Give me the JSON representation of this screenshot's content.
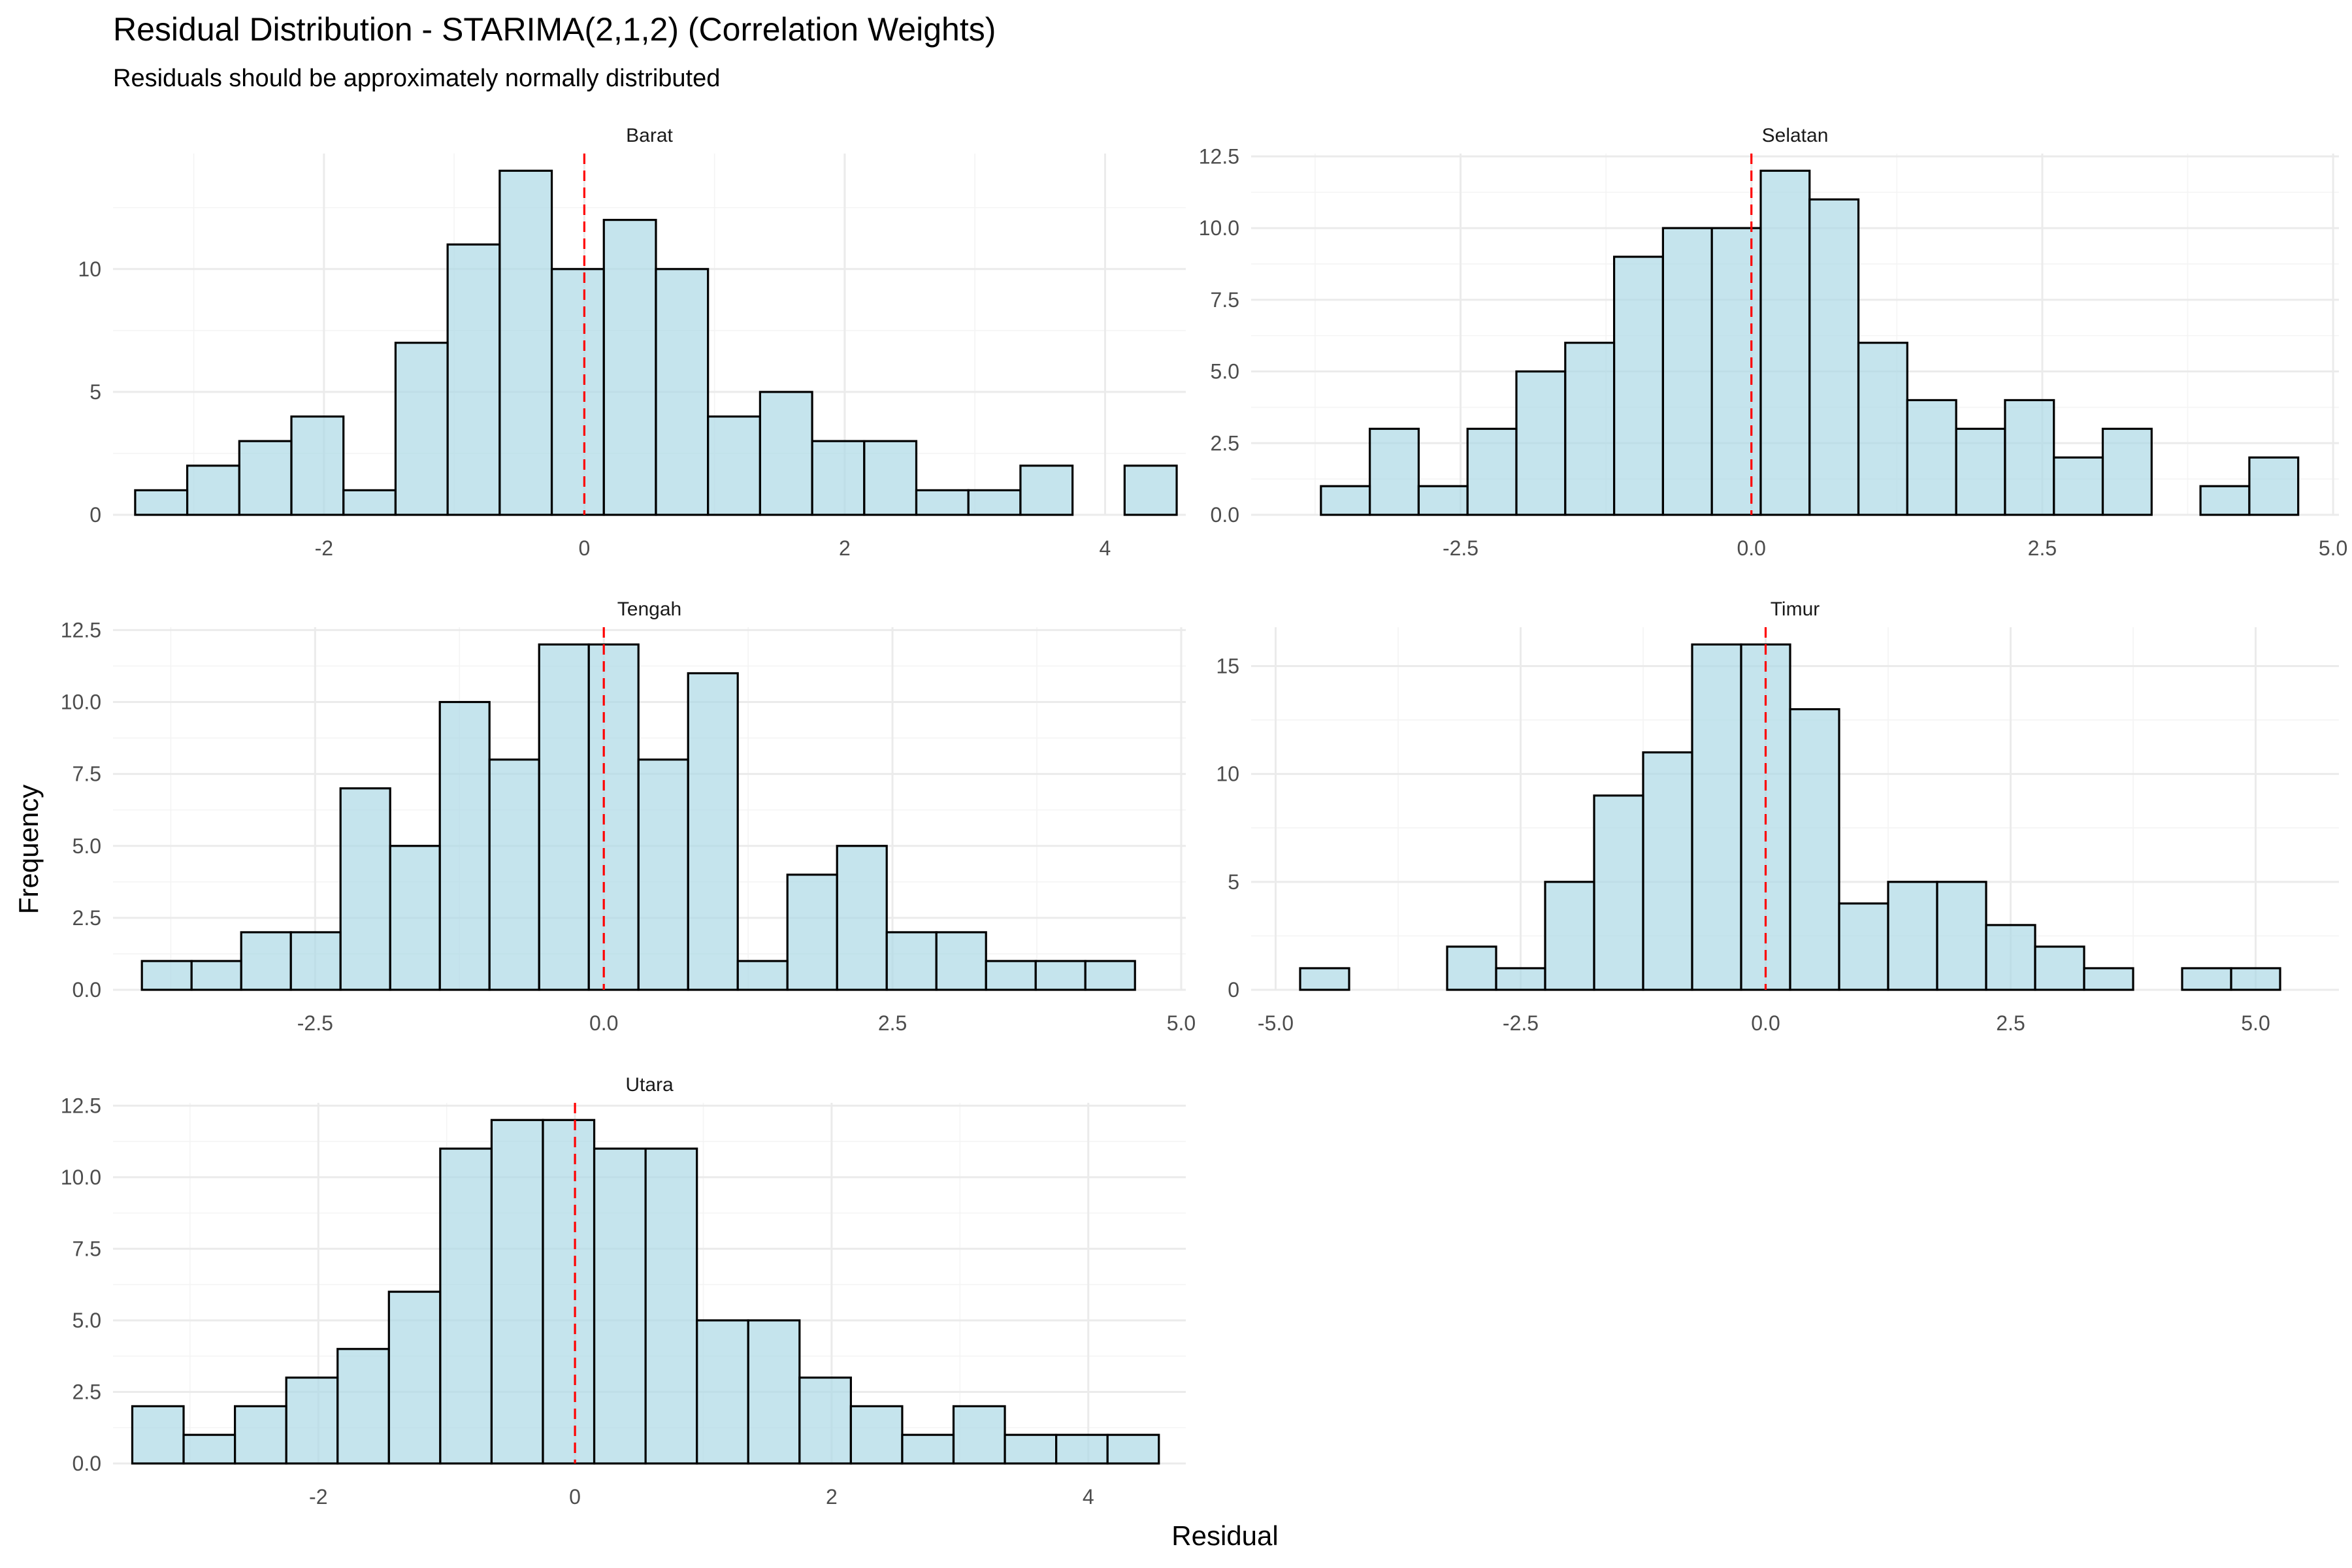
{
  "chart_data": {
    "type": "bar",
    "layout": "facet-grid",
    "title": "Residual Distribution - STARIMA(2,1,2) (Correlation Weights)",
    "subtitle": "Residuals should be approximately normally distributed",
    "xlabel": "Residual",
    "ylabel": "Frequency",
    "colors": {
      "fill": "#add8e6",
      "outline": "#000000",
      "reference_line": "#ff0000"
    },
    "reference_line": {
      "x": 0,
      "style": "dashed"
    },
    "panels": [
      {
        "name": "Barat",
        "xlim": [
          -3.62,
          4.62
        ],
        "ylim": [
          0,
          14.7
        ],
        "xticks": [
          -2,
          0,
          2,
          4
        ],
        "xtick_labels": [
          "-2",
          "0",
          "2",
          "4"
        ],
        "yticks": [
          0,
          5,
          10
        ],
        "ytick_labels": [
          "0",
          "5",
          "10"
        ],
        "bin_start": -3.45,
        "bin_width": 0.4,
        "counts": [
          1,
          2,
          3,
          4,
          1,
          7,
          11,
          14,
          10,
          12,
          10,
          4,
          5,
          3,
          3,
          1,
          1,
          2,
          0,
          2
        ]
      },
      {
        "name": "Selatan",
        "xlim": [
          -4.3,
          5.05
        ],
        "ylim": [
          0,
          12.6
        ],
        "xticks": [
          -2.5,
          0,
          2.5,
          5
        ],
        "xtick_labels": [
          "-2.5",
          "0.0",
          "2.5",
          "5.0"
        ],
        "yticks": [
          0,
          2.5,
          5,
          7.5,
          10,
          12.5
        ],
        "ytick_labels": [
          "0.0",
          "2.5",
          "5.0",
          "7.5",
          "10.0",
          "12.5"
        ],
        "bin_start": -3.7,
        "bin_width": 0.42,
        "counts": [
          1,
          3,
          1,
          3,
          5,
          6,
          9,
          10,
          10,
          12,
          11,
          6,
          4,
          3,
          4,
          2,
          3,
          0,
          1,
          2
        ]
      },
      {
        "name": "Tengah",
        "xlim": [
          -4.25,
          5.04
        ],
        "ylim": [
          0,
          12.6
        ],
        "xticks": [
          -2.5,
          0,
          2.5,
          5
        ],
        "xtick_labels": [
          "-2.5",
          "0.0",
          "2.5",
          "5.0"
        ],
        "yticks": [
          0,
          2.5,
          5,
          7.5,
          10,
          12.5
        ],
        "ytick_labels": [
          "0.0",
          "2.5",
          "5.0",
          "7.5",
          "10.0",
          "12.5"
        ],
        "bin_start": -4.0,
        "bin_width": 0.43,
        "counts": [
          1,
          1,
          2,
          2,
          7,
          5,
          10,
          8,
          12,
          12,
          8,
          11,
          1,
          4,
          5,
          2,
          2,
          1,
          1,
          1
        ]
      },
      {
        "name": "Timur",
        "xlim": [
          -5.25,
          5.85
        ],
        "ylim": [
          0,
          16.8
        ],
        "xticks": [
          -5,
          -2.5,
          0,
          2.5,
          5
        ],
        "xtick_labels": [
          "-5.0",
          "-2.5",
          "0.0",
          "2.5",
          "5.0"
        ],
        "yticks": [
          0,
          5,
          10,
          15
        ],
        "ytick_labels": [
          "0",
          "5",
          "10",
          "15"
        ],
        "bin_start": -4.75,
        "bin_width": 0.5,
        "counts": [
          1,
          0,
          0,
          2,
          1,
          5,
          9,
          11,
          16,
          16,
          13,
          4,
          5,
          5,
          3,
          2,
          1,
          0,
          1,
          1
        ]
      },
      {
        "name": "Utara",
        "xlim": [
          -3.6,
          4.76
        ],
        "ylim": [
          0,
          12.6
        ],
        "xticks": [
          -2,
          0,
          2,
          4
        ],
        "xtick_labels": [
          "-2",
          "0",
          "2",
          "4"
        ],
        "yticks": [
          0,
          2.5,
          5,
          7.5,
          10,
          12.5
        ],
        "ytick_labels": [
          "0.0",
          "2.5",
          "5.0",
          "7.5",
          "10.0",
          "12.5"
        ],
        "bin_start": -3.45,
        "bin_width": 0.4,
        "counts": [
          2,
          1,
          2,
          3,
          4,
          6,
          11,
          12,
          12,
          11,
          11,
          5,
          5,
          3,
          2,
          1,
          2,
          1,
          1,
          1
        ]
      }
    ]
  }
}
